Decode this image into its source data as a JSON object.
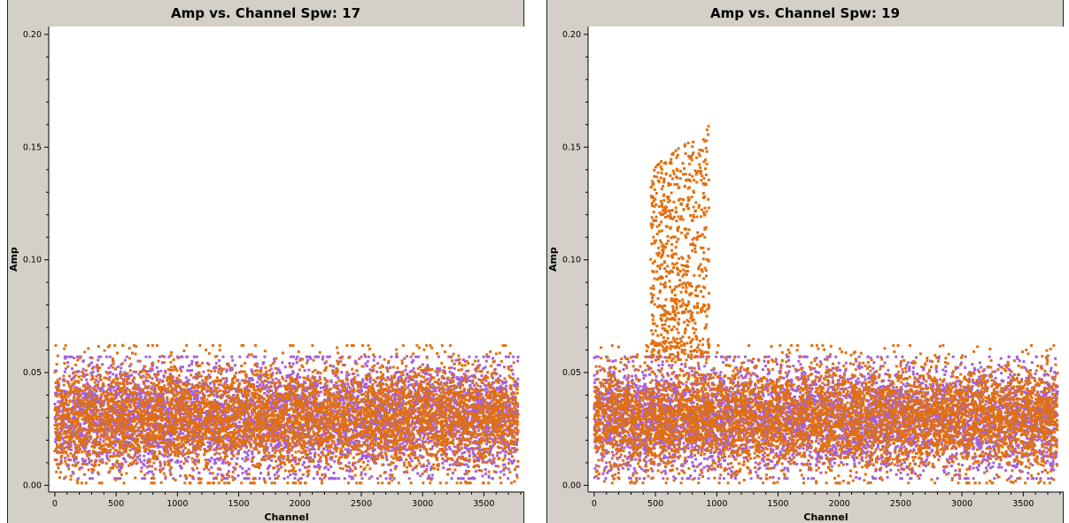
{
  "colors": {
    "series_a": "#a560d8",
    "series_b": "#e07010",
    "frame": "#d4d0c8"
  },
  "chart_data": [
    {
      "type": "scatter",
      "title": "Amp vs. Channel Spw: 17",
      "xlabel": "Channel",
      "ylabel": "Amp",
      "xlim": [
        -50,
        3830
      ],
      "ylim": [
        -0.003,
        0.2035
      ],
      "xticks": [
        0,
        500,
        1000,
        1500,
        2000,
        2500,
        3000,
        3500
      ],
      "yticks": [
        0.0,
        0.05,
        0.1,
        0.15,
        0.2
      ],
      "ytick_labels": [
        "0.00",
        "0.05",
        "0.10",
        "0.15",
        "0.20"
      ],
      "grid": false,
      "series": [
        {
          "color": "#a560d8",
          "x_range": [
            0,
            3780
          ],
          "points": 5200,
          "band": {
            "mean": 0.03,
            "spread": 0.012,
            "min": 0.003,
            "max": 0.057
          }
        },
        {
          "color": "#e07010",
          "x_range": [
            0,
            3780
          ],
          "points": 5200,
          "band": {
            "mean": 0.03,
            "spread": 0.012,
            "min": 0.001,
            "max": 0.062
          }
        }
      ]
    },
    {
      "type": "scatter",
      "title": "Amp vs. Channel Spw: 19",
      "xlabel": "Channel",
      "ylabel": "Amp",
      "xlim": [
        -50,
        3830
      ],
      "ylim": [
        -0.003,
        0.2035
      ],
      "xticks": [
        0,
        500,
        1000,
        1500,
        2000,
        2500,
        3000,
        3500
      ],
      "yticks": [
        0.0,
        0.05,
        0.1,
        0.15,
        0.2
      ],
      "ytick_labels": [
        "0.00",
        "0.05",
        "0.10",
        "0.15",
        "0.20"
      ],
      "grid": false,
      "series": [
        {
          "color": "#a560d8",
          "x_range": [
            0,
            3780
          ],
          "points": 5200,
          "band": {
            "mean": 0.03,
            "spread": 0.012,
            "min": 0.003,
            "max": 0.057
          }
        },
        {
          "color": "#e07010",
          "x_range": [
            0,
            3780
          ],
          "points": 5200,
          "band": {
            "mean": 0.03,
            "spread": 0.012,
            "min": 0.001,
            "max": 0.062
          },
          "feature": {
            "x_range": [
              460,
              940
            ],
            "y_range": [
              0.055,
              0.165
            ],
            "points": 700
          }
        }
      ]
    }
  ]
}
